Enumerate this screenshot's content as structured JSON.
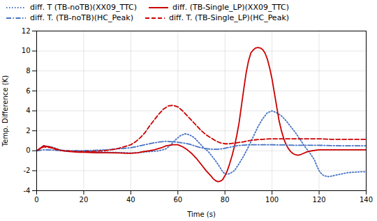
{
  "chart_data": {
    "type": "line",
    "xlabel": "Time (s)",
    "ylabel": "Temp. Difference (K)",
    "xlim": [
      0,
      140
    ],
    "ylim": [
      -4,
      12
    ],
    "xticks": [
      0,
      20,
      40,
      60,
      80,
      100,
      120,
      140
    ],
    "yticks": [
      -4,
      -2,
      0,
      2,
      4,
      6,
      8,
      10,
      12
    ],
    "grid": true,
    "legend": "upper left",
    "series": [
      {
        "name": "diff. T (TB-noTB)(XX09_TTC)",
        "color": "#4472C4",
        "line_style": "dotted",
        "x": [
          0,
          3,
          6,
          8,
          10,
          12,
          15,
          18,
          20,
          25,
          30,
          35,
          38,
          40,
          43,
          45,
          47,
          50,
          52,
          55,
          57,
          59,
          61,
          63,
          65,
          67,
          69,
          71,
          73,
          74,
          76,
          78,
          79,
          80,
          81,
          82,
          84,
          86,
          88,
          90,
          92,
          94,
          96,
          98,
          100,
          102,
          104,
          106,
          108,
          110,
          112,
          114,
          116,
          118,
          119,
          120,
          121,
          122,
          124,
          126,
          128,
          130,
          132,
          135,
          138,
          140
        ],
        "values": [
          0.0,
          0.5,
          0.4,
          0.25,
          0.1,
          0.0,
          -0.05,
          -0.1,
          -0.1,
          -0.12,
          -0.15,
          -0.18,
          -0.2,
          -0.22,
          -0.2,
          -0.15,
          -0.1,
          -0.05,
          0.0,
          0.2,
          0.6,
          1.1,
          1.5,
          1.7,
          1.6,
          1.3,
          0.8,
          0.3,
          -0.1,
          -0.4,
          -1.0,
          -1.7,
          -2.1,
          -2.3,
          -2.35,
          -2.3,
          -2.0,
          -1.3,
          -0.5,
          0.4,
          1.4,
          2.4,
          3.2,
          3.8,
          4.0,
          3.8,
          3.5,
          3.0,
          2.4,
          1.8,
          1.1,
          0.4,
          -0.2,
          -0.9,
          -1.5,
          -2.0,
          -2.3,
          -2.5,
          -2.6,
          -2.5,
          -2.4,
          -2.3,
          -2.2,
          -2.15,
          -2.1,
          -2.1
        ]
      },
      {
        "name": "diff. (TB-Single_LP)(XX09_TTC)",
        "color": "#CC0000",
        "line_style": "solid",
        "x": [
          0,
          3,
          6,
          8,
          10,
          12,
          15,
          18,
          20,
          25,
          30,
          35,
          38,
          40,
          43,
          45,
          48,
          50,
          53,
          55,
          58,
          60,
          62,
          64,
          66,
          68,
          70,
          72,
          74,
          75,
          76,
          77,
          78,
          79,
          80,
          81,
          82,
          83,
          84,
          85,
          86,
          87,
          88,
          89,
          90,
          91,
          92,
          93,
          94,
          95,
          96,
          97,
          98,
          99,
          100,
          101,
          102,
          103,
          104,
          105,
          106,
          107,
          108,
          109,
          110,
          111,
          112,
          113,
          115,
          117,
          120,
          125,
          130,
          135,
          140
        ],
        "values": [
          0.0,
          0.5,
          0.35,
          0.2,
          0.05,
          -0.05,
          -0.1,
          -0.15,
          -0.15,
          -0.2,
          -0.2,
          -0.22,
          -0.25,
          -0.25,
          -0.2,
          -0.1,
          0.0,
          0.1,
          0.3,
          0.5,
          0.6,
          0.6,
          0.4,
          0.1,
          -0.3,
          -0.8,
          -1.4,
          -2.0,
          -2.5,
          -2.8,
          -3.0,
          -3.1,
          -3.05,
          -2.9,
          -2.5,
          -2.0,
          -1.3,
          -0.5,
          0.4,
          1.5,
          2.8,
          4.5,
          6.2,
          7.8,
          9.0,
          9.8,
          10.1,
          10.3,
          10.35,
          10.3,
          10.15,
          9.8,
          9.2,
          8.3,
          7.2,
          5.8,
          4.4,
          3.0,
          2.0,
          1.2,
          0.6,
          0.2,
          -0.1,
          -0.3,
          -0.4,
          -0.45,
          -0.4,
          -0.3,
          -0.1,
          0.0,
          0.1,
          0.1,
          0.1,
          0.1,
          0.1
        ]
      },
      {
        "name": "diff. T. (TB-noTB)(HC_Peak)",
        "color": "#4472C4",
        "line_style": "dashdot",
        "x": [
          0,
          3,
          6,
          8,
          10,
          12,
          15,
          18,
          20,
          25,
          30,
          35,
          40,
          43,
          45,
          48,
          50,
          53,
          55,
          58,
          60,
          63,
          65,
          67,
          69,
          71,
          73,
          75,
          77,
          79,
          81,
          83,
          85,
          87,
          90,
          93,
          96,
          100,
          105,
          110,
          115,
          120,
          125,
          130,
          135,
          140
        ],
        "values": [
          0.0,
          0.1,
          0.08,
          0.05,
          0.02,
          0.0,
          0.0,
          0.0,
          0.0,
          0.05,
          0.1,
          0.2,
          0.3,
          0.45,
          0.55,
          0.7,
          0.8,
          0.9,
          0.95,
          0.9,
          0.85,
          0.75,
          0.65,
          0.5,
          0.35,
          0.25,
          0.18,
          0.15,
          0.15,
          0.2,
          0.3,
          0.4,
          0.5,
          0.55,
          0.6,
          0.6,
          0.6,
          0.6,
          0.58,
          0.55,
          0.55,
          0.55,
          0.52,
          0.5,
          0.5,
          0.5
        ]
      },
      {
        "name": "diff. T. (TB-Single_LP)(HC_Peak)",
        "color": "#CC0000",
        "line_style": "dashed",
        "x": [
          0,
          3,
          6,
          8,
          10,
          12,
          15,
          18,
          20,
          25,
          28,
          30,
          33,
          35,
          37,
          40,
          42,
          44,
          46,
          48,
          50,
          52,
          54,
          56,
          58,
          60,
          62,
          64,
          66,
          68,
          70,
          72,
          74,
          76,
          78,
          80,
          82,
          85,
          88,
          90,
          93,
          96,
          100,
          105,
          110,
          115,
          120,
          125,
          130,
          135,
          140
        ],
        "values": [
          0.0,
          0.4,
          0.3,
          0.15,
          0.05,
          0.0,
          -0.05,
          -0.08,
          -0.08,
          -0.05,
          0.0,
          0.05,
          0.15,
          0.25,
          0.4,
          0.6,
          0.9,
          1.3,
          1.8,
          2.5,
          3.1,
          3.7,
          4.2,
          4.5,
          4.55,
          4.4,
          4.0,
          3.5,
          3.0,
          2.5,
          2.0,
          1.6,
          1.3,
          1.0,
          0.8,
          0.7,
          0.7,
          0.8,
          0.9,
          1.0,
          1.1,
          1.15,
          1.2,
          1.2,
          1.2,
          1.2,
          1.2,
          1.15,
          1.15,
          1.15,
          1.15
        ]
      }
    ]
  }
}
